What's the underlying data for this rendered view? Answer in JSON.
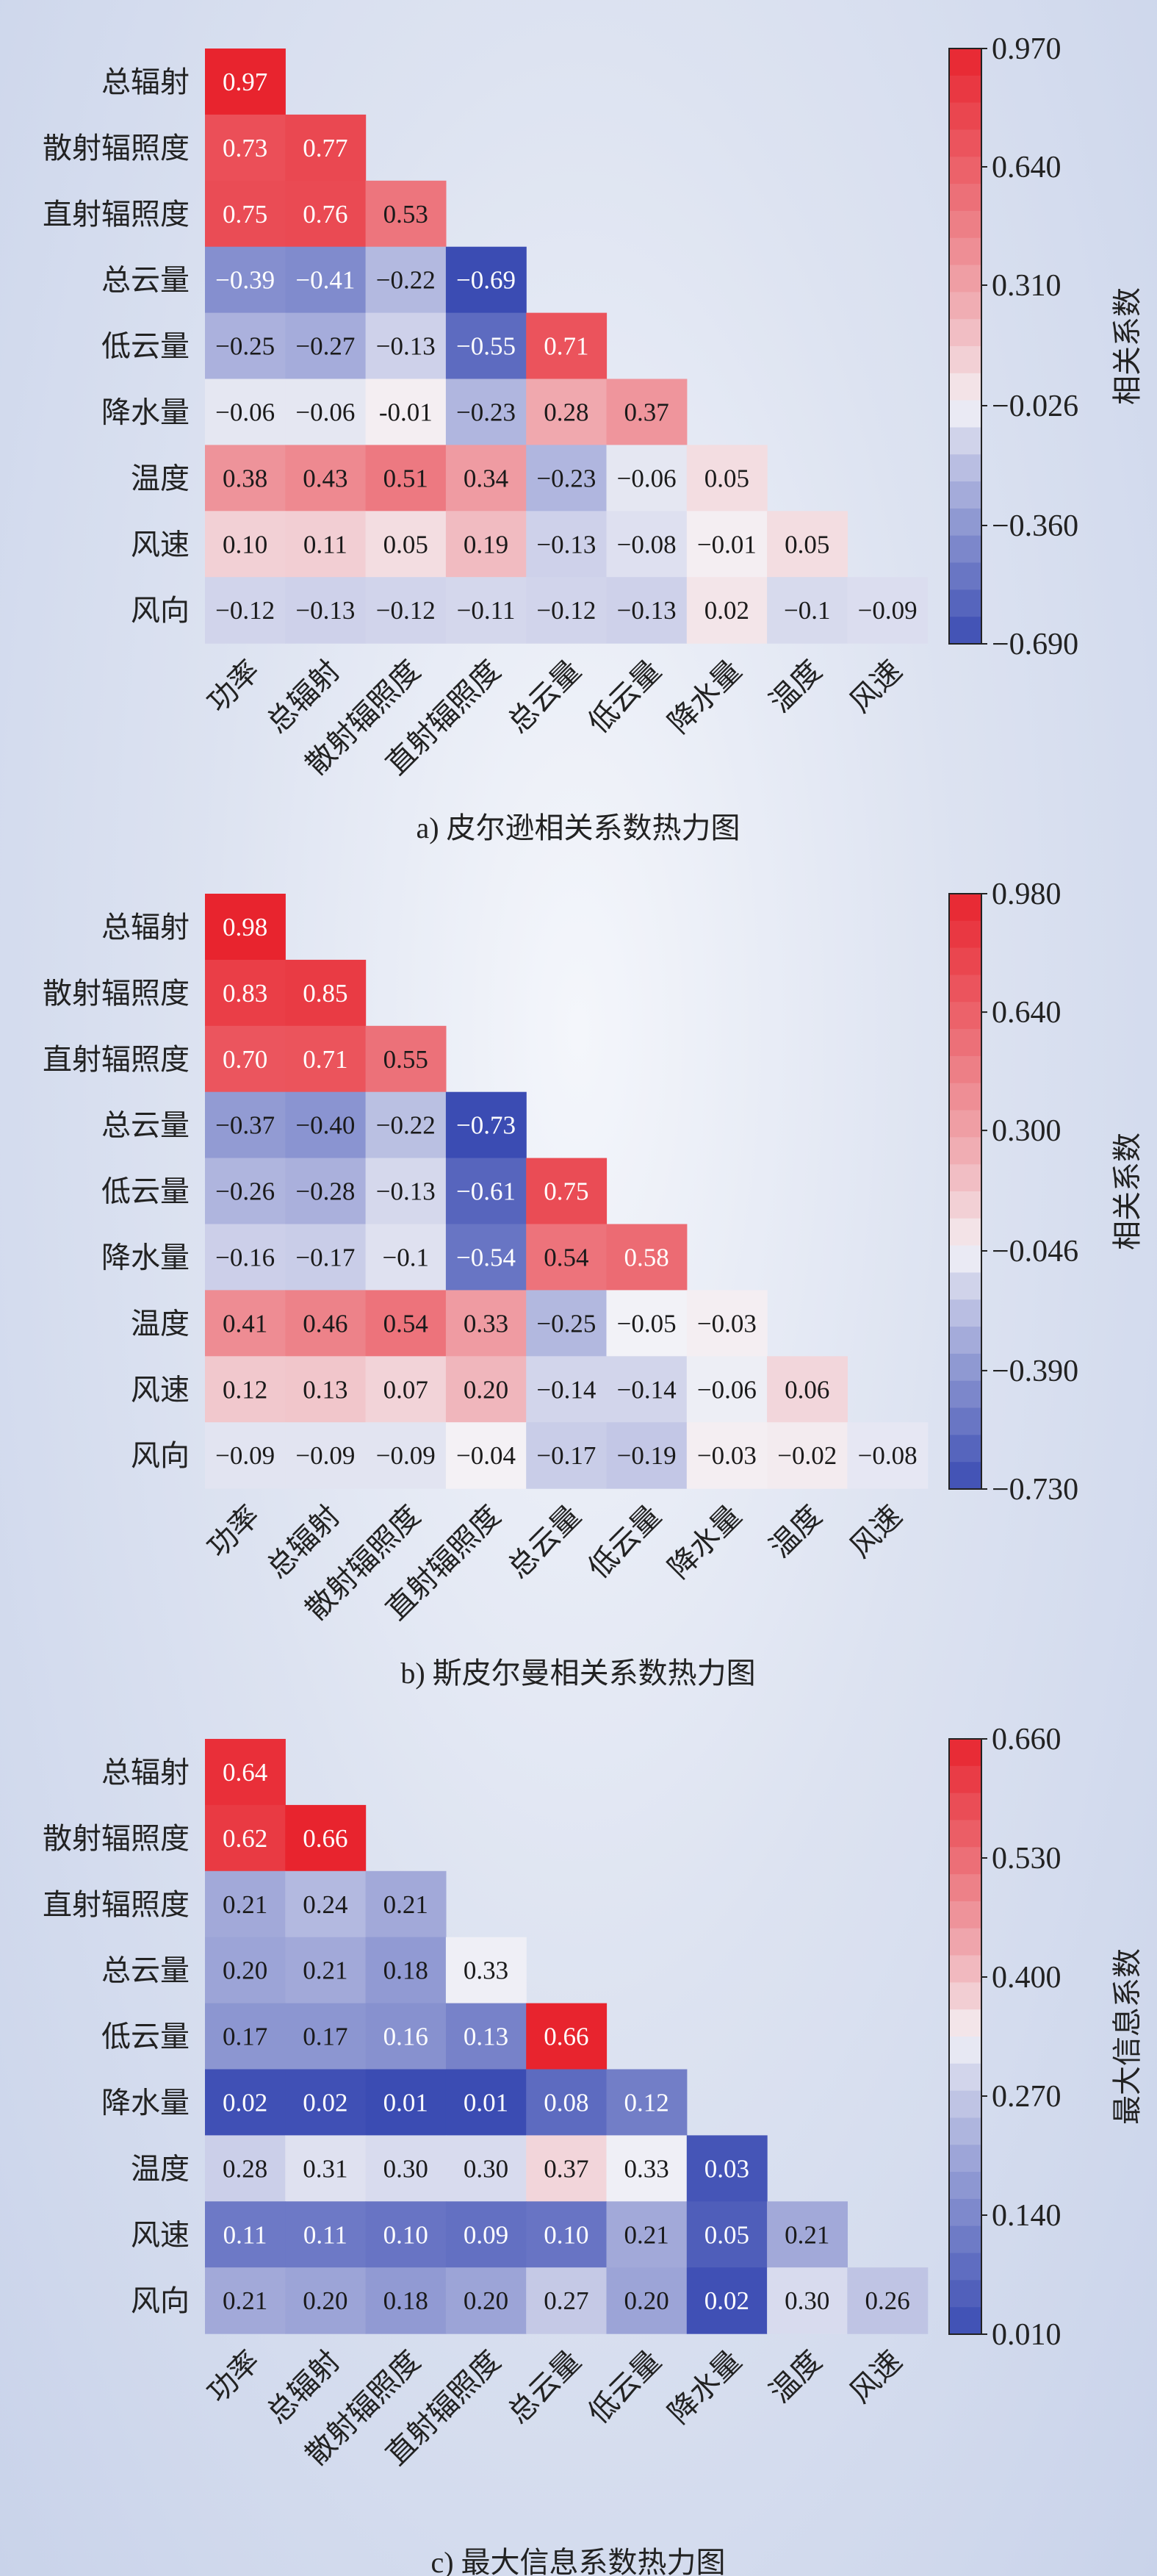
{
  "chart_data": [
    {
      "type": "heatmap",
      "caption": "a) 皮尔逊相关系数热力图",
      "row_labels": [
        "总辐射",
        "散射辐照度",
        "直射辐照度",
        "总云量",
        "低云量",
        "降水量",
        "温度",
        "风速",
        "风向"
      ],
      "col_labels": [
        "功率",
        "总辐射",
        "散射辐照度",
        "直射辐照度",
        "总云量",
        "低云量",
        "降水量",
        "温度",
        "风速"
      ],
      "values": [
        [
          "0.97"
        ],
        [
          "0.73",
          "0.77"
        ],
        [
          "0.75",
          "0.76",
          "0.53"
        ],
        [
          "−0.39",
          "−0.41",
          "−0.22",
          "−0.69"
        ],
        [
          "−0.25",
          "−0.27",
          "−0.13",
          "−0.55",
          "0.71"
        ],
        [
          "−0.06",
          "−0.06",
          "-0.01",
          "−0.23",
          "0.28",
          "0.37"
        ],
        [
          "0.38",
          "0.43",
          "0.51",
          "0.34",
          "−0.23",
          "−0.06",
          "0.05"
        ],
        [
          "0.10",
          "0.11",
          "0.05",
          "0.19",
          "−0.13",
          "−0.08",
          "−0.01",
          "0.05"
        ],
        [
          "−0.12",
          "−0.13",
          "−0.12",
          "−0.11",
          "−0.12",
          "−0.13",
          "0.02",
          "−0.1",
          "−0.09"
        ]
      ],
      "colorbar": {
        "label": "相关系数",
        "range": [
          -0.69,
          0.97
        ],
        "center": -0.026,
        "ticks": [
          "0.970",
          "0.640",
          "0.310",
          "−0.026",
          "−0.360",
          "−0.690"
        ],
        "tick_values": [
          0.97,
          0.64,
          0.31,
          -0.026,
          -0.36,
          -0.69
        ]
      }
    },
    {
      "type": "heatmap",
      "caption": "b) 斯皮尔曼相关系数热力图",
      "row_labels": [
        "总辐射",
        "散射辐照度",
        "直射辐照度",
        "总云量",
        "低云量",
        "降水量",
        "温度",
        "风速",
        "风向"
      ],
      "col_labels": [
        "功率",
        "总辐射",
        "散射辐照度",
        "直射辐照度",
        "总云量",
        "低云量",
        "降水量",
        "温度",
        "风速"
      ],
      "values": [
        [
          "0.98"
        ],
        [
          "0.83",
          "0.85"
        ],
        [
          "0.70",
          "0.71",
          "0.55"
        ],
        [
          "−0.37",
          "−0.40",
          "−0.22",
          "−0.73"
        ],
        [
          "−0.26",
          "−0.28",
          "−0.13",
          "−0.61",
          "0.75"
        ],
        [
          "−0.16",
          "−0.17",
          "−0.1",
          "−0.54",
          "0.54",
          "0.58"
        ],
        [
          "0.41",
          "0.46",
          "0.54",
          "0.33",
          "−0.25",
          "−0.05",
          "−0.03"
        ],
        [
          "0.12",
          "0.13",
          "0.07",
          "0.20",
          "−0.14",
          "−0.14",
          "−0.06",
          "0.06"
        ],
        [
          "−0.09",
          "−0.09",
          "−0.09",
          "−0.04",
          "−0.17",
          "−0.19",
          "−0.03",
          "−0.02",
          "−0.08"
        ]
      ],
      "colorbar": {
        "label": "相关系数",
        "range": [
          -0.73,
          0.98
        ],
        "center": -0.046,
        "ticks": [
          "0.980",
          "0.640",
          "0.300",
          "−0.046",
          "−0.390",
          "−0.730"
        ],
        "tick_values": [
          0.98,
          0.64,
          0.3,
          -0.046,
          -0.39,
          -0.73
        ]
      }
    },
    {
      "type": "heatmap",
      "caption": "c) 最大信息系数热力图",
      "row_labels": [
        "总辐射",
        "散射辐照度",
        "直射辐照度",
        "总云量",
        "低云量",
        "降水量",
        "温度",
        "风速",
        "风向"
      ],
      "col_labels": [
        "功率",
        "总辐射",
        "散射辐照度",
        "直射辐照度",
        "总云量",
        "低云量",
        "降水量",
        "温度",
        "风速"
      ],
      "values": [
        [
          "0.64"
        ],
        [
          "0.62",
          "0.66"
        ],
        [
          "0.21",
          "0.24",
          "0.21"
        ],
        [
          "0.20",
          "0.21",
          "0.18",
          "0.33"
        ],
        [
          "0.17",
          "0.17",
          "0.16",
          "0.13",
          "0.66"
        ],
        [
          "0.02",
          "0.02",
          "0.01",
          "0.01",
          "0.08",
          "0.12"
        ],
        [
          "0.28",
          "0.31",
          "0.30",
          "0.30",
          "0.37",
          "0.33",
          "0.03"
        ],
        [
          "0.11",
          "0.11",
          "0.10",
          "0.09",
          "0.10",
          "0.21",
          "0.05",
          "0.21"
        ],
        [
          "0.21",
          "0.20",
          "0.18",
          "0.20",
          "0.27",
          "0.20",
          "0.02",
          "0.30",
          "0.26"
        ]
      ],
      "colorbar": {
        "label": "最大信息系数",
        "range": [
          0.01,
          0.66
        ],
        "center": 0.335,
        "ticks": [
          "0.660",
          "0.530",
          "0.400",
          "0.270",
          "0.140",
          "0.010"
        ],
        "tick_values": [
          0.66,
          0.53,
          0.4,
          0.27,
          0.14,
          0.01
        ]
      }
    }
  ]
}
